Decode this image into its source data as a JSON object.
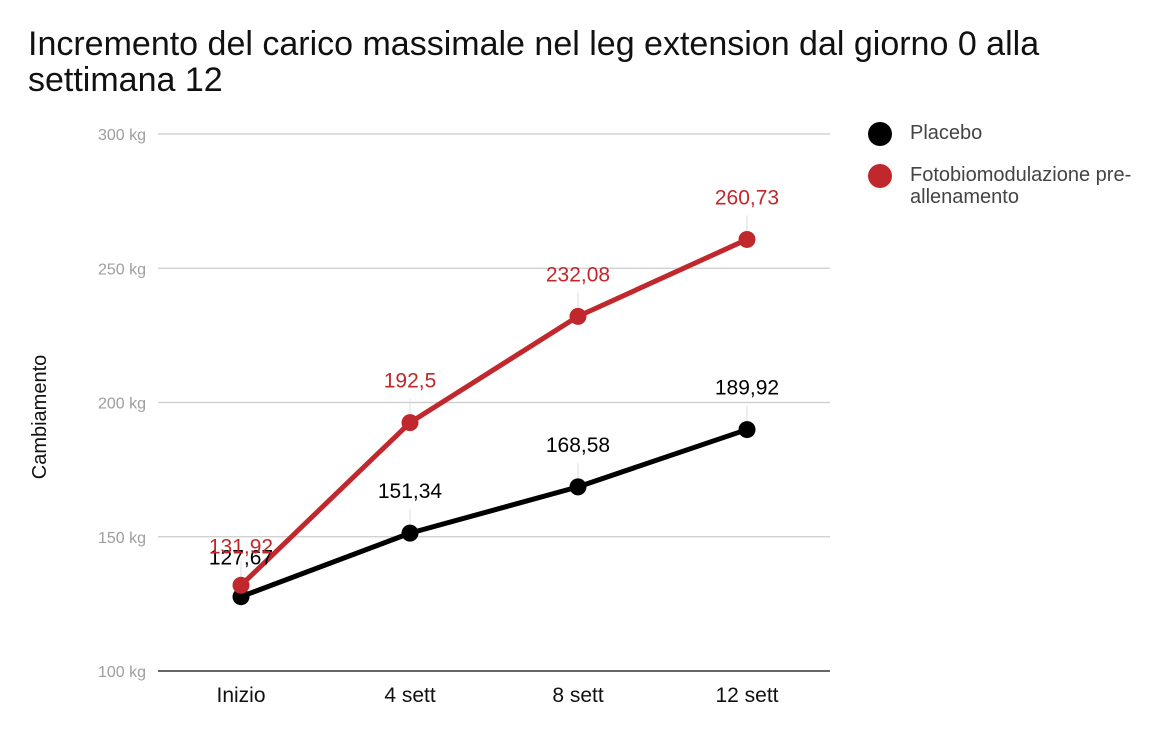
{
  "chart_data": {
    "type": "line",
    "title": "Incremento del carico massimale nel leg extension dal giorno 0 alla settimana 12",
    "xlabel": "",
    "ylabel": "Cambiamento",
    "categories": [
      "Inizio",
      "4 sett",
      "8 sett",
      "12 sett"
    ],
    "y_ticks": [
      "100 kg",
      "150 kg",
      "200 kg",
      "250 kg",
      "300 kg"
    ],
    "ylim": [
      100,
      300
    ],
    "grid": true,
    "legend_position": "right",
    "series": [
      {
        "name": "Placebo",
        "color": "#000000",
        "values": [
          127.67,
          151.34,
          168.58,
          189.92
        ],
        "labels": [
          "127,67",
          "151,34",
          "168,58",
          "189,92"
        ]
      },
      {
        "name": "Fotobiomodulazione pre-allenamento",
        "color": "#c0282d",
        "values": [
          131.92,
          192.5,
          232.08,
          260.73
        ],
        "labels": [
          "131,92",
          "192,5",
          "232,08",
          "260,73"
        ]
      }
    ]
  }
}
